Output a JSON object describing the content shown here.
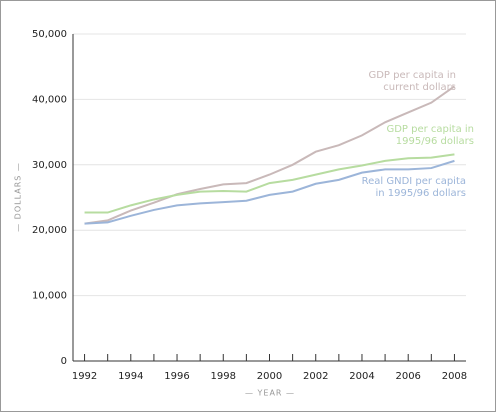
{
  "chart_data": {
    "type": "line",
    "x_label": "— YEAR —",
    "y_label": "— DOLLARS —",
    "x": [
      1992,
      1993,
      1994,
      1995,
      1996,
      1997,
      1998,
      1999,
      2000,
      2001,
      2002,
      2003,
      2004,
      2005,
      2006,
      2007,
      2008
    ],
    "series": [
      {
        "name": "GDP per capita in current dollars",
        "color": "#c9b9b9",
        "values": [
          21000,
          21500,
          23000,
          24200,
          25500,
          26300,
          27000,
          27200,
          28500,
          30000,
          32000,
          33000,
          34500,
          36500,
          38000,
          39500,
          42000
        ]
      },
      {
        "name": "GDP per capita in 1995/96 dollars",
        "color": "#b7dca0",
        "values": [
          22700,
          22700,
          23800,
          24700,
          25400,
          25900,
          26000,
          25900,
          27200,
          27700,
          28500,
          29300,
          29900,
          30600,
          31000,
          31100,
          31600
        ]
      },
      {
        "name": "Real GNDI per capita in 1995/96 dollars",
        "color": "#9cb5d9",
        "values": [
          21000,
          21200,
          22200,
          23100,
          23800,
          24100,
          24300,
          24500,
          25400,
          25900,
          27100,
          27700,
          28800,
          29300,
          29300,
          29500,
          30600
        ]
      }
    ],
    "xlim": [
      1991.5,
      2008.5
    ],
    "xticks": [
      1992,
      1994,
      1996,
      1998,
      2000,
      2002,
      2004,
      2006,
      2008
    ],
    "ylim": [
      0,
      50000
    ],
    "yticks": [
      0,
      {
        "value": 10000,
        "label": "10,000"
      },
      {
        "value": 20000,
        "label": "20,000"
      },
      {
        "value": 30000,
        "label": "30,000"
      },
      {
        "value": 40000,
        "label": "40,000"
      },
      {
        "value": 50000,
        "label": "50,000"
      }
    ],
    "grid": true
  }
}
